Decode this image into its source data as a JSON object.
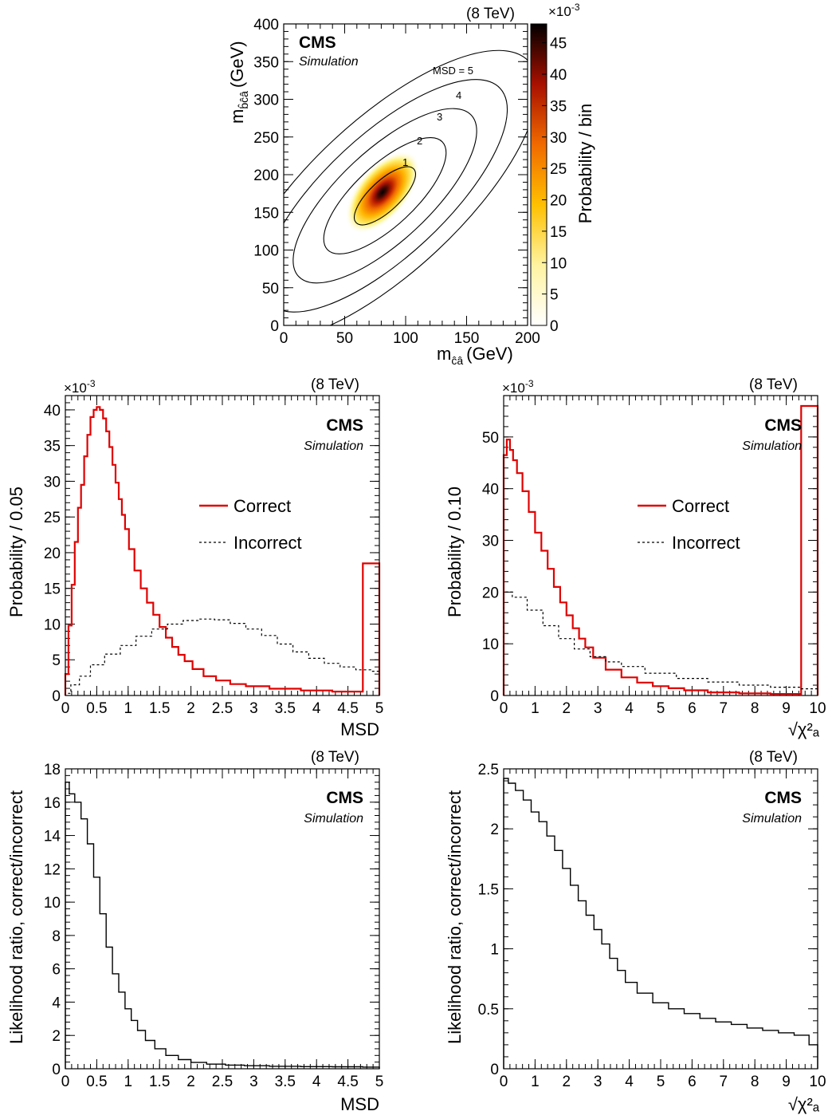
{
  "energy_label": "(8 TeV)",
  "cms_label": "CMS",
  "simulation_label": "Simulation",
  "multiplier_base": "×10",
  "multiplier_exp": "-3",
  "chart_data": [
    {
      "id": "mass-2d",
      "type": "heatmap",
      "xlabel": "m",
      "xlabel_sub": "ĉâ",
      "xlabel_unit": "(GeV)",
      "ylabel": "m",
      "ylabel_sub": "b̂ĉâ",
      "ylabel_unit": "(GeV)",
      "zlabel": "Probability / bin",
      "xlim": [
        0,
        200
      ],
      "ylim": [
        0,
        400
      ],
      "zlim": [
        0,
        48
      ],
      "xticks": [
        0,
        50,
        100,
        150,
        200
      ],
      "yticks": [
        0,
        50,
        100,
        150,
        200,
        250,
        300,
        350,
        400
      ],
      "zticks": [
        0,
        5,
        10,
        15,
        20,
        25,
        30,
        35,
        40,
        45
      ],
      "peak": {
        "x": 83,
        "y": 172,
        "value": 48
      },
      "contours": [
        {
          "label": "1",
          "msd": 1
        },
        {
          "label": "2",
          "msd": 2
        },
        {
          "label": "3",
          "msd": 3
        },
        {
          "label": "4",
          "msd": 4
        },
        {
          "label": "MSD = 5",
          "msd": 5
        }
      ]
    },
    {
      "id": "msd-prob",
      "type": "line",
      "xlabel": "MSD",
      "ylabel": "Probability / 0.05",
      "xlim": [
        0,
        5
      ],
      "ylim": [
        0,
        42
      ],
      "xticks": [
        0,
        0.5,
        1,
        1.5,
        2,
        2.5,
        3,
        3.5,
        4,
        4.5,
        5
      ],
      "yticks": [
        0,
        5,
        10,
        15,
        20,
        25,
        30,
        35,
        40
      ],
      "legend_position": "center-right",
      "series": [
        {
          "name": "Correct",
          "color": "#e00000",
          "style": "solid",
          "x": [
            0.025,
            0.075,
            0.125,
            0.175,
            0.225,
            0.275,
            0.325,
            0.375,
            0.425,
            0.475,
            0.525,
            0.575,
            0.625,
            0.675,
            0.725,
            0.775,
            0.825,
            0.875,
            0.925,
            0.975,
            1.05,
            1.15,
            1.25,
            1.35,
            1.45,
            1.55,
            1.65,
            1.75,
            1.85,
            1.95,
            2.1,
            2.3,
            2.5,
            2.75,
            3.0,
            3.5,
            4.0,
            4.5,
            4.975
          ],
          "values": [
            3.0,
            9.8,
            15.5,
            21.5,
            26.3,
            29.5,
            33.5,
            36.5,
            39.0,
            40.0,
            40.4,
            40.0,
            38.8,
            37.0,
            34.8,
            32.3,
            29.8,
            27.5,
            25.3,
            23.3,
            20.5,
            17.5,
            15.0,
            13.0,
            11.3,
            9.6,
            8.1,
            6.8,
            5.7,
            4.8,
            3.7,
            2.7,
            2.1,
            1.6,
            1.3,
            0.95,
            0.7,
            0.55,
            18.5
          ]
        },
        {
          "name": "Incorrect",
          "color": "#000000",
          "style": "dashed",
          "x": [
            0.025,
            0.15,
            0.3,
            0.5,
            0.75,
            1.0,
            1.25,
            1.5,
            1.75,
            2.0,
            2.25,
            2.5,
            2.75,
            3.0,
            3.25,
            3.5,
            3.75,
            4.0,
            4.25,
            4.5,
            4.75,
            4.975
          ],
          "values": [
            0.3,
            1.5,
            2.7,
            4.3,
            5.8,
            7.0,
            8.3,
            9.3,
            10.0,
            10.5,
            10.7,
            10.6,
            10.1,
            9.3,
            8.4,
            7.2,
            6.1,
            5.2,
            4.5,
            4.0,
            3.6,
            3.4
          ]
        }
      ]
    },
    {
      "id": "chi2-prob",
      "type": "line",
      "xlabel": "√χ²ₐ",
      "ylabel": "Probability / 0.10",
      "xlim": [
        0,
        10
      ],
      "ylim": [
        0,
        58
      ],
      "xticks": [
        0,
        1,
        2,
        3,
        4,
        5,
        6,
        7,
        8,
        9,
        10
      ],
      "yticks": [
        0,
        10,
        20,
        30,
        40,
        50
      ],
      "legend_position": "center-right",
      "series": [
        {
          "name": "Correct",
          "color": "#e00000",
          "style": "solid",
          "x": [
            0.05,
            0.15,
            0.25,
            0.35,
            0.5,
            0.7,
            0.9,
            1.1,
            1.3,
            1.5,
            1.7,
            1.9,
            2.1,
            2.3,
            2.5,
            2.7,
            3.0,
            3.5,
            4.0,
            4.5,
            5.0,
            5.5,
            6.0,
            7.0,
            8.0,
            9.0,
            9.95
          ],
          "values": [
            46.5,
            49.5,
            47.5,
            45.5,
            43.0,
            39.5,
            35.5,
            31.5,
            28.0,
            24.5,
            21.0,
            18.0,
            15.5,
            13.0,
            11.0,
            9.3,
            7.3,
            5.0,
            3.5,
            2.5,
            1.8,
            1.4,
            1.0,
            0.6,
            0.4,
            0.3,
            56.0
          ]
        },
        {
          "name": "Incorrect",
          "color": "#000000",
          "style": "dashed",
          "x": [
            0.05,
            0.5,
            1.0,
            1.5,
            2.0,
            2.5,
            3.0,
            3.5,
            4.0,
            5.0,
            6.0,
            7.0,
            8.0,
            9.0,
            9.95
          ],
          "values": [
            20.0,
            19.0,
            16.5,
            13.5,
            11.0,
            9.0,
            7.5,
            6.5,
            5.6,
            4.3,
            3.3,
            2.6,
            2.0,
            1.6,
            1.3
          ]
        }
      ]
    },
    {
      "id": "msd-ratio",
      "type": "line",
      "xlabel": "MSD",
      "ylabel": "Likelihood ratio, correct/incorrect",
      "xlim": [
        0,
        5
      ],
      "ylim": [
        0,
        18
      ],
      "xticks": [
        0,
        0.5,
        1,
        1.5,
        2,
        2.5,
        3,
        3.5,
        4,
        4.5,
        5
      ],
      "yticks": [
        0,
        2,
        4,
        6,
        8,
        10,
        12,
        14,
        16,
        18
      ],
      "series": [
        {
          "name": "",
          "color": "#000000",
          "style": "solid",
          "x": [
            0.025,
            0.1,
            0.2,
            0.3,
            0.4,
            0.5,
            0.6,
            0.7,
            0.8,
            0.9,
            1.0,
            1.1,
            1.2,
            1.35,
            1.5,
            1.7,
            1.9,
            2.1,
            2.4,
            2.7,
            3.0,
            3.5,
            4.0,
            4.5,
            4.975
          ],
          "values": [
            17.2,
            16.5,
            16.0,
            15.0,
            13.5,
            11.5,
            9.3,
            7.3,
            5.7,
            4.6,
            3.6,
            2.9,
            2.3,
            1.7,
            1.2,
            0.8,
            0.55,
            0.38,
            0.28,
            0.22,
            0.18,
            0.15,
            0.13,
            0.12,
            0.1
          ]
        }
      ]
    },
    {
      "id": "chi2-ratio",
      "type": "line",
      "xlabel": "√χ²ₐ",
      "ylabel": "Likelihood ratio, correct/incorrect",
      "xlim": [
        0,
        10
      ],
      "ylim": [
        0,
        2.5
      ],
      "xticks": [
        0,
        1,
        2,
        3,
        4,
        5,
        6,
        7,
        8,
        9,
        10
      ],
      "yticks": [
        0,
        0.5,
        1,
        1.5,
        2,
        2.5
      ],
      "series": [
        {
          "name": "",
          "color": "#000000",
          "style": "solid",
          "x": [
            0.05,
            0.25,
            0.5,
            0.75,
            1.0,
            1.25,
            1.5,
            1.75,
            2.0,
            2.25,
            2.5,
            2.75,
            3.0,
            3.25,
            3.5,
            3.75,
            4.0,
            4.5,
            5.0,
            5.5,
            6.0,
            6.5,
            7.0,
            7.5,
            8.0,
            8.5,
            9.0,
            9.5,
            9.95
          ],
          "values": [
            2.42,
            2.38,
            2.32,
            2.24,
            2.14,
            2.06,
            1.94,
            1.82,
            1.67,
            1.53,
            1.4,
            1.28,
            1.16,
            1.04,
            0.92,
            0.82,
            0.72,
            0.63,
            0.55,
            0.5,
            0.46,
            0.42,
            0.39,
            0.37,
            0.34,
            0.32,
            0.3,
            0.28,
            0.2
          ]
        }
      ]
    }
  ]
}
